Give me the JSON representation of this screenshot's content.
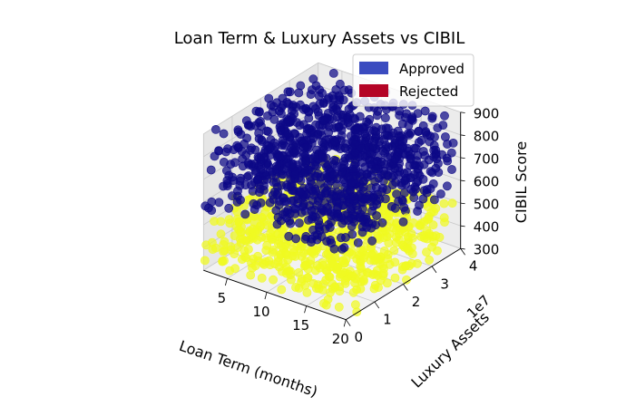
{
  "chart_data": {
    "type": "scatter",
    "projection": "3d",
    "title": "Loan Term & Luxury Assets vs CIBIL",
    "xlabel": "Loan Term (months)",
    "ylabel": "Luxury Assets",
    "ylabel_offset": "1e7",
    "zlabel": "CIBIL Score",
    "xlim": [
      2,
      20
    ],
    "ylim": [
      0,
      4
    ],
    "zlim": [
      300,
      900
    ],
    "x_ticks": [
      "5",
      "10",
      "15",
      "20"
    ],
    "y_ticks": [
      "0",
      "1",
      "2",
      "3",
      "4"
    ],
    "z_ticks": [
      "300",
      "400",
      "500",
      "600",
      "700",
      "800",
      "900"
    ],
    "grid": true,
    "legend": {
      "placement": "top-right",
      "entries": [
        {
          "label": "Approved",
          "color": "#3b4cc0"
        },
        {
          "label": "Rejected",
          "color": "#b40426"
        }
      ]
    },
    "point_colors": {
      "approved": "#0d0887",
      "rejected": "#f0f921"
    },
    "approval_cibil_threshold": 550,
    "series": [
      {
        "status": "approved",
        "cibil_range": [
          550,
          900
        ],
        "loan_term_range": [
          2,
          20
        ],
        "luxury_assets_range_1e7": [
          0,
          4
        ]
      },
      {
        "status": "rejected",
        "cibil_range": [
          300,
          550
        ],
        "loan_term_range": [
          2,
          20
        ],
        "luxury_assets_range_1e7": [
          0,
          4
        ]
      }
    ]
  }
}
